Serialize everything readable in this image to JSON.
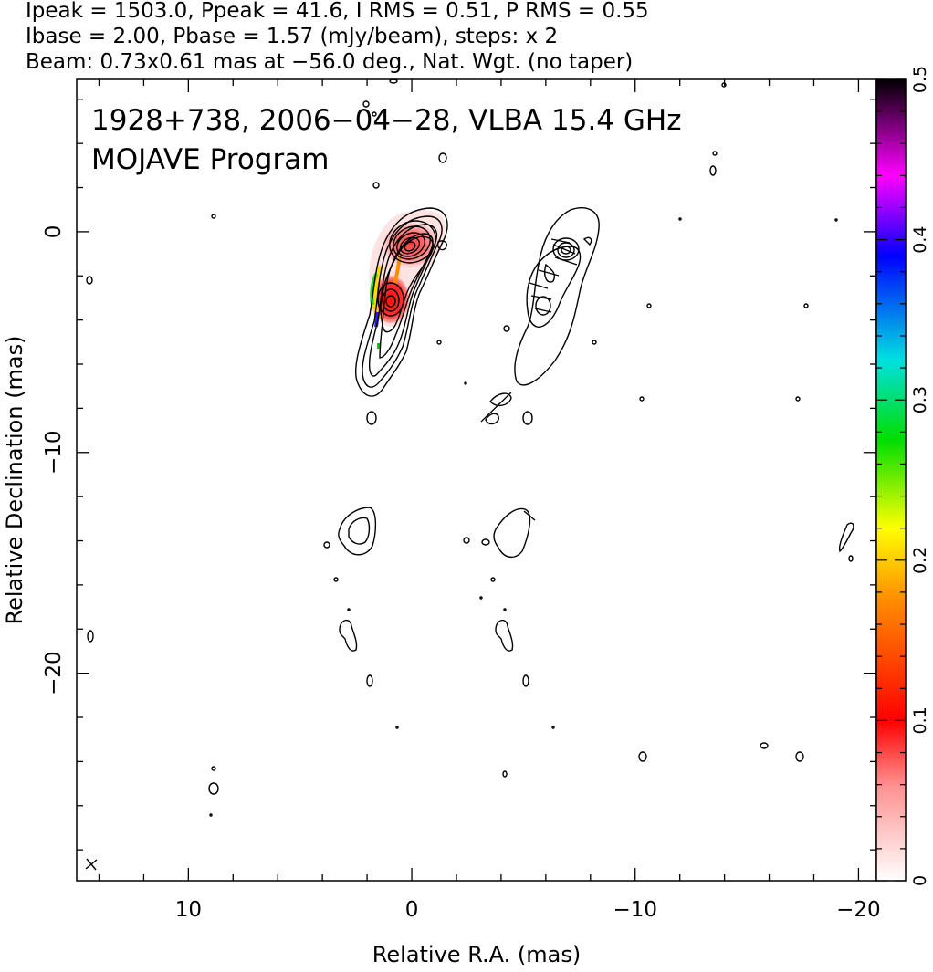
{
  "header": {
    "line1": "Ipeak = 1503.0, Ppeak = 41.6, I RMS = 0.51, P RMS = 0.55",
    "line2": "Ibase = 2.00, Pbase = 1.57 (mJy/beam), steps: x 2",
    "line3": "Beam: 0.73x0.61 mas at −56.0 deg., Nat. Wgt. (no taper)"
  },
  "chart_data": {
    "type": "heatmap",
    "title": "1928+738, 2006−04−28, VLBA 15.4 GHz",
    "subtitle": "MOJAVE Program",
    "xlabel": "Relative R.A. (mas)",
    "ylabel": "Relative Declination (mas)",
    "xlim": [
      15.0,
      -20.8
    ],
    "ylim": [
      -29.4,
      6.9
    ],
    "x_ticks": [
      10,
      0,
      -10,
      -20
    ],
    "x_tick_labels": [
      "10",
      "0",
      "−10",
      "−20"
    ],
    "y_ticks": [
      0,
      -10,
      -20
    ],
    "y_tick_labels": [
      "0",
      "−10",
      "−20"
    ],
    "colorbar": {
      "min": 0,
      "max": 0.5,
      "ticks": [
        0,
        0.1,
        0.2,
        0.3,
        0.4,
        0.5
      ],
      "tick_labels": [
        "0",
        "0.1",
        "0.2",
        "0.3",
        "0.4",
        "0.5"
      ],
      "colors": [
        "#ffffff",
        "#ff0000",
        "#ff8c00",
        "#ffff00",
        "#00dd00",
        "#00e0e0",
        "#0000ff",
        "#ff00ff",
        "#000000"
      ]
    },
    "core": {
      "x": 0.2,
      "y": -0.8
    },
    "jet_component": {
      "x": 1.2,
      "y": -3.2
    },
    "grid": false
  }
}
